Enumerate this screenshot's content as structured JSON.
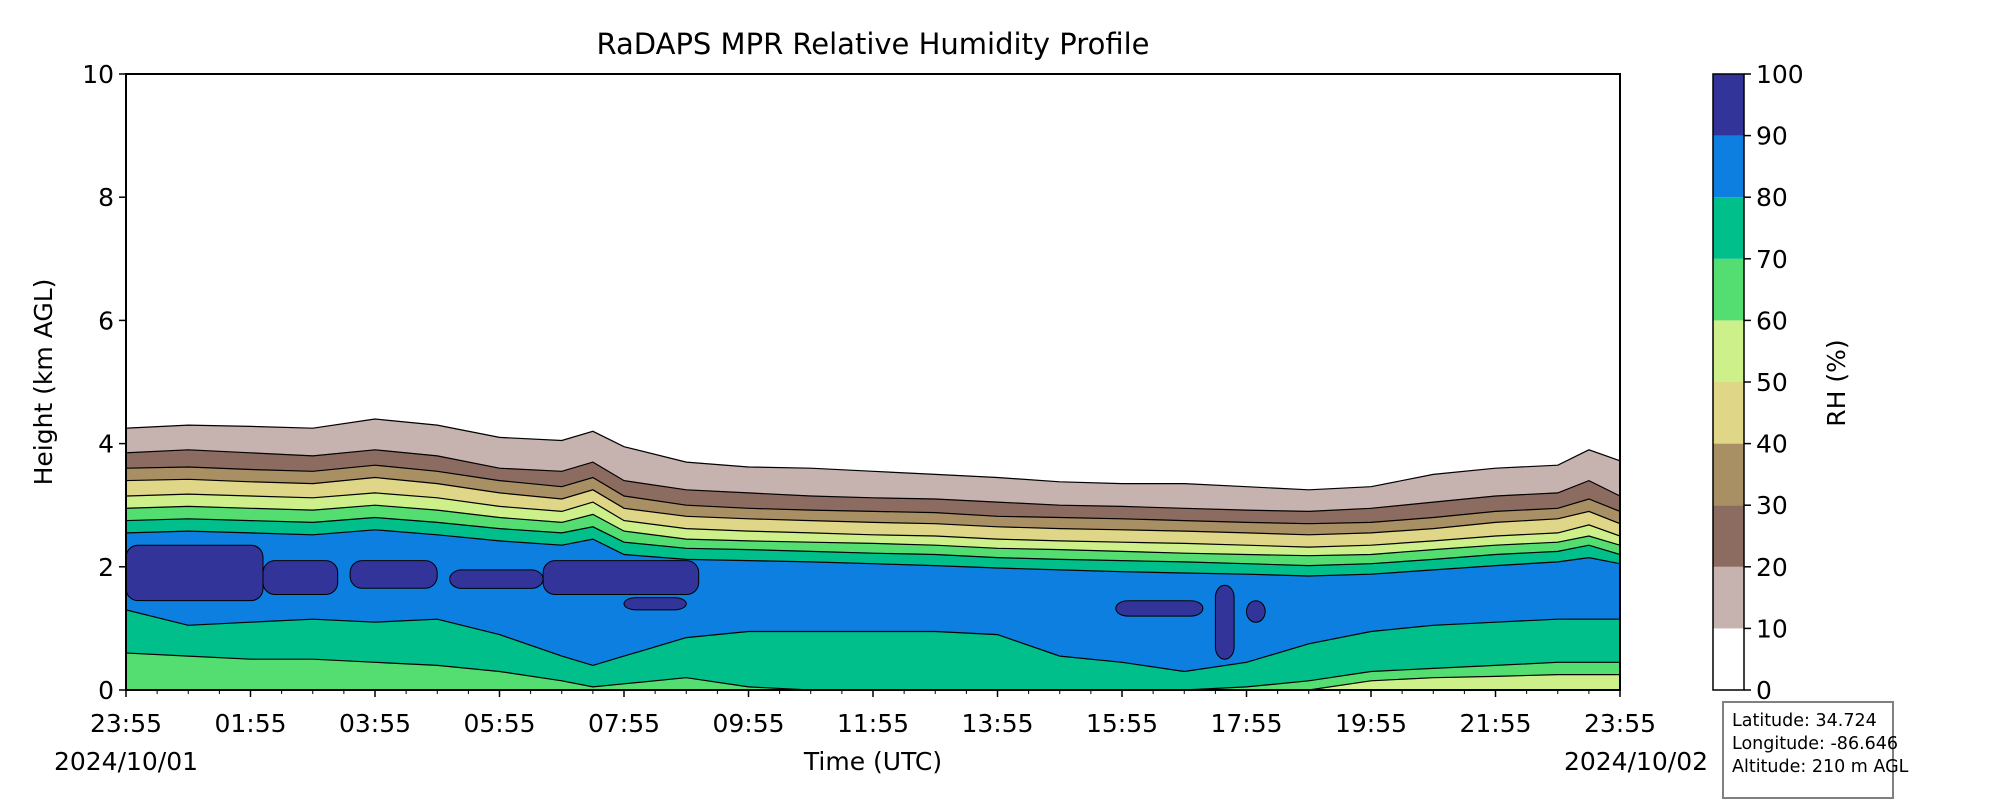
{
  "chart_data": {
    "type": "heatmap",
    "subtype": "filled-contour",
    "title": "RaDAPS MPR Relative Humidity Profile",
    "xlabel": "Time (UTC)",
    "ylabel": "Height (km AGL)",
    "ylim": [
      0,
      10
    ],
    "yticks": [
      "0",
      "2",
      "4",
      "6",
      "8",
      "10"
    ],
    "xticks": [
      "23:55",
      "01:55",
      "03:55",
      "05:55",
      "07:55",
      "09:55",
      "11:55",
      "13:55",
      "15:55",
      "17:55",
      "19:55",
      "21:55",
      "23:55"
    ],
    "start_date": "2024/10/01",
    "end_date": "2024/10/02",
    "time_hours": [
      0,
      1,
      2,
      3,
      4,
      5,
      6,
      7,
      7.5,
      8,
      9,
      10,
      11,
      12,
      13,
      14,
      15,
      16,
      17,
      18,
      19,
      20,
      21,
      22,
      23,
      23.5,
      24
    ],
    "contour_height_km": {
      "10": [
        4.25,
        4.3,
        4.28,
        4.25,
        4.4,
        4.3,
        4.1,
        4.05,
        4.2,
        3.95,
        3.7,
        3.62,
        3.6,
        3.55,
        3.5,
        3.45,
        3.38,
        3.35,
        3.35,
        3.3,
        3.25,
        3.3,
        3.5,
        3.6,
        3.65,
        3.9,
        3.72
      ],
      "20": [
        3.85,
        3.9,
        3.85,
        3.8,
        3.9,
        3.8,
        3.6,
        3.55,
        3.7,
        3.4,
        3.25,
        3.2,
        3.15,
        3.12,
        3.1,
        3.05,
        3.0,
        2.98,
        2.95,
        2.92,
        2.9,
        2.95,
        3.05,
        3.15,
        3.2,
        3.4,
        3.15
      ],
      "30": [
        3.6,
        3.62,
        3.58,
        3.55,
        3.65,
        3.55,
        3.4,
        3.3,
        3.45,
        3.15,
        3.0,
        2.95,
        2.92,
        2.9,
        2.88,
        2.82,
        2.8,
        2.78,
        2.75,
        2.72,
        2.7,
        2.72,
        2.8,
        2.9,
        2.95,
        3.1,
        2.9
      ],
      "40": [
        3.4,
        3.42,
        3.38,
        3.35,
        3.45,
        3.35,
        3.2,
        3.1,
        3.25,
        2.95,
        2.82,
        2.78,
        2.75,
        2.72,
        2.7,
        2.65,
        2.62,
        2.6,
        2.58,
        2.55,
        2.52,
        2.55,
        2.62,
        2.72,
        2.78,
        2.9,
        2.7
      ],
      "50": [
        3.15,
        3.18,
        3.15,
        3.12,
        3.2,
        3.12,
        2.98,
        2.9,
        3.05,
        2.75,
        2.62,
        2.58,
        2.55,
        2.52,
        2.5,
        2.45,
        2.42,
        2.4,
        2.38,
        2.35,
        2.32,
        2.35,
        2.42,
        2.5,
        2.55,
        2.68,
        2.5
      ],
      "60": [
        2.95,
        2.98,
        2.95,
        2.92,
        3.0,
        2.92,
        2.8,
        2.72,
        2.85,
        2.58,
        2.45,
        2.42,
        2.4,
        2.38,
        2.35,
        2.3,
        2.28,
        2.25,
        2.22,
        2.2,
        2.18,
        2.2,
        2.28,
        2.35,
        2.4,
        2.5,
        2.35
      ],
      "70": [
        2.75,
        2.78,
        2.75,
        2.72,
        2.8,
        2.72,
        2.62,
        2.55,
        2.65,
        2.4,
        2.3,
        2.28,
        2.25,
        2.22,
        2.2,
        2.15,
        2.12,
        2.1,
        2.08,
        2.05,
        2.02,
        2.05,
        2.12,
        2.2,
        2.25,
        2.35,
        2.2
      ],
      "80": [
        2.55,
        2.58,
        2.55,
        2.52,
        2.6,
        2.52,
        2.42,
        2.35,
        2.45,
        2.2,
        2.12,
        2.1,
        2.08,
        2.05,
        2.02,
        1.98,
        1.95,
        1.92,
        1.9,
        1.88,
        1.85,
        1.88,
        1.95,
        2.02,
        2.08,
        2.15,
        2.05
      ]
    },
    "lower_boundary_height_km": {
      "80": [
        1.3,
        1.05,
        1.1,
        1.15,
        1.1,
        1.15,
        0.9,
        0.55,
        0.4,
        0.55,
        0.85,
        0.95,
        0.95,
        0.95,
        0.95,
        0.9,
        0.55,
        0.45,
        0.3,
        0.45,
        0.75,
        0.95,
        1.05,
        1.1,
        1.15,
        1.15,
        1.15
      ],
      "70": [
        0.6,
        0.55,
        0.5,
        0.5,
        0.45,
        0.4,
        0.3,
        0.15,
        0.05,
        0.1,
        0.2,
        0.05,
        0.0,
        0.0,
        0.0,
        0.0,
        0.0,
        0.0,
        0.0,
        0.05,
        0.15,
        0.3,
        0.35,
        0.4,
        0.45,
        0.45,
        0.45
      ],
      "60": [
        0.0,
        0.0,
        0.0,
        0.0,
        0.0,
        0.0,
        0.0,
        0.0,
        0.0,
        0.0,
        0.0,
        0.0,
        0.0,
        0.0,
        0.0,
        0.0,
        0.0,
        0.0,
        0.0,
        0.0,
        0.0,
        0.15,
        0.2,
        0.22,
        0.25,
        0.25,
        0.25
      ]
    },
    "colorbar": {
      "label": "RH (%)",
      "ticks": [
        "0",
        "10",
        "20",
        "30",
        "40",
        "50",
        "60",
        "70",
        "80",
        "90",
        "100"
      ],
      "levels": [
        0,
        10,
        20,
        30,
        40,
        50,
        60,
        70,
        80,
        90,
        100
      ],
      "colors": [
        "#ffffff",
        "#c6b3b0",
        "#8c6b61",
        "#a89064",
        "#e0d688",
        "#cdf08a",
        "#54de72",
        "#00bf8a",
        "#0c7fe0",
        "#33349a"
      ]
    },
    "grid": false,
    "legend": "colorbar-right"
  },
  "info_box": {
    "latitude": "Latitude: 34.724",
    "longitude": "Longitude: -86.646",
    "altitude": "Altitude: 210 m AGL"
  }
}
